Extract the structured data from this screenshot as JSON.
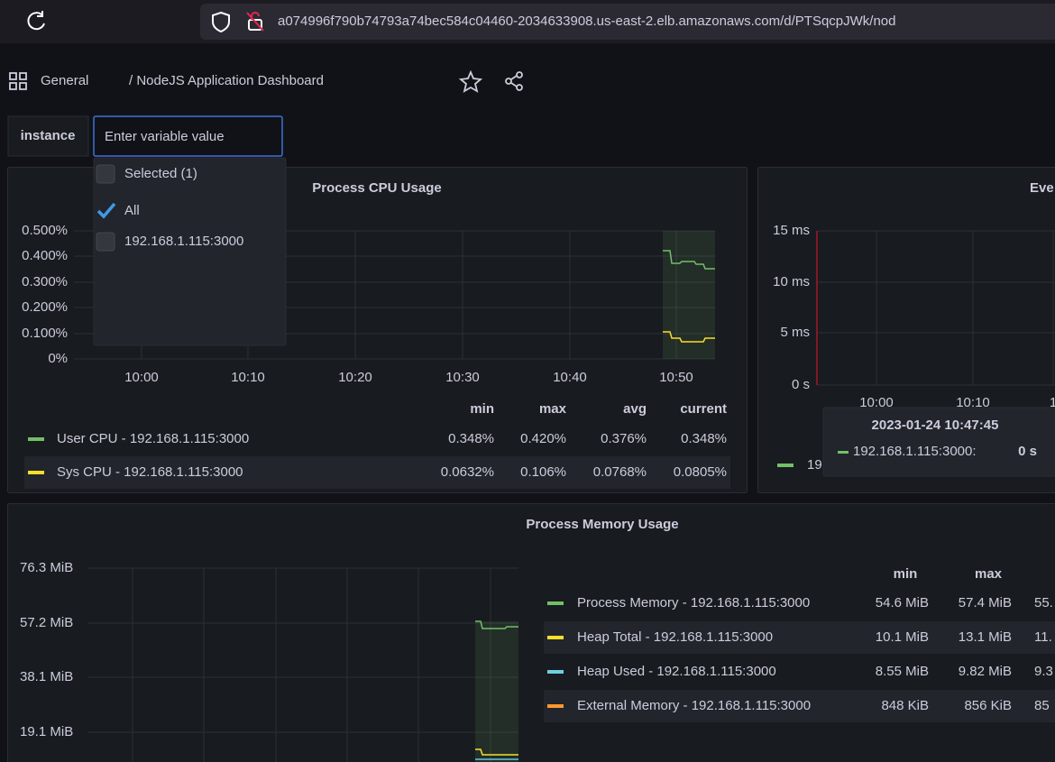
{
  "browser": {
    "url_host": "a074996f790b74793a74bec584c04460-2034633908.us-east-2.elb.amazonaws.com",
    "url_path": "/d/PTSqcpJWk/nod"
  },
  "header": {
    "folder": "General",
    "title": "/ NodeJS Application Dashboard"
  },
  "variable": {
    "label": "instance",
    "placeholder": "Enter variable value",
    "options": [
      "Selected (1)",
      "All",
      "192.168.1.115:3000"
    ]
  },
  "cpu_panel": {
    "title": "Process CPU Usage",
    "yticks": [
      "0.500%",
      "0.400%",
      "0.300%",
      "0.200%",
      "0.100%",
      "0%"
    ],
    "xticks": [
      "10:00",
      "10:10",
      "10:20",
      "10:30",
      "10:40",
      "10:50"
    ],
    "columns": [
      "min",
      "max",
      "avg",
      "current"
    ],
    "rows": [
      {
        "name": "User CPU - 192.168.1.115:3000",
        "values": [
          "0.348%",
          "0.420%",
          "0.376%",
          "0.348%"
        ]
      },
      {
        "name": "Sys CPU - 192.168.1.115:3000",
        "values": [
          "0.0632%",
          "0.106%",
          "0.0768%",
          "0.0805%"
        ]
      }
    ]
  },
  "event_panel": {
    "title": "Eve",
    "yticks": [
      "15 ms",
      "10 ms",
      "5 ms",
      "0 s"
    ],
    "xticks": [
      "10:00",
      "10:10",
      "1"
    ],
    "legend": "19",
    "tooltip": {
      "time": "2023-01-24 10:47:45",
      "series": "192.168.1.115:3000:",
      "value": "0 s"
    }
  },
  "memory_panel": {
    "title": "Process Memory Usage",
    "yticks": [
      "76.3 MiB",
      "57.2 MiB",
      "38.1 MiB",
      "19.1 MiB"
    ],
    "columns": [
      "min",
      "max"
    ],
    "rows": [
      {
        "name": "Process Memory - 192.168.1.115:3000",
        "values": [
          "54.6 MiB",
          "57.4 MiB",
          "55."
        ]
      },
      {
        "name": "Heap Total - 192.168.1.115:3000",
        "values": [
          "10.1 MiB",
          "13.1 MiB",
          "11."
        ]
      },
      {
        "name": "Heap Used - 192.168.1.115:3000",
        "values": [
          "8.55 MiB",
          "9.82 MiB",
          "9.3"
        ]
      },
      {
        "name": "External Memory - 192.168.1.115:3000",
        "values": [
          "848 KiB",
          "856 KiB",
          "85"
        ]
      }
    ]
  }
}
